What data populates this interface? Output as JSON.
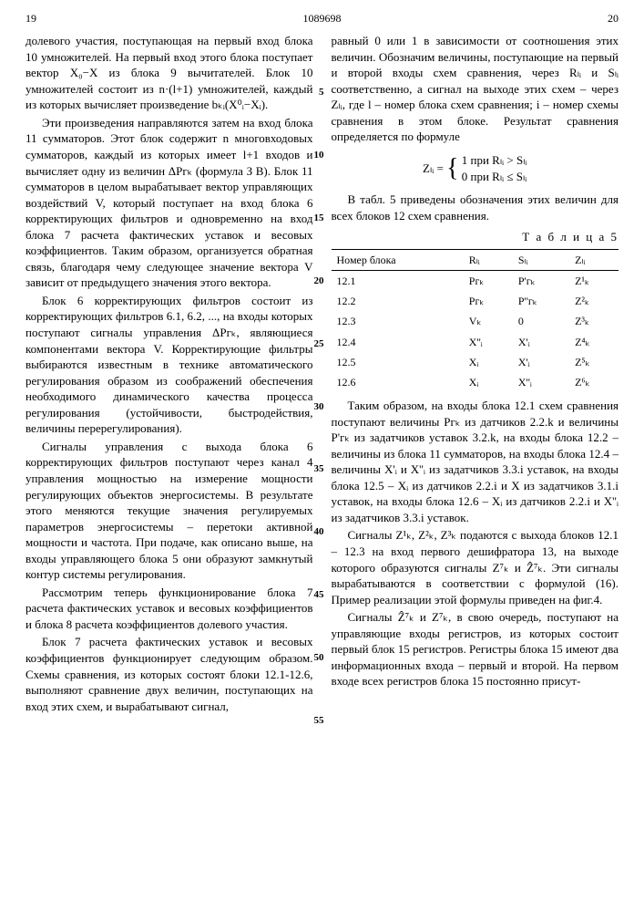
{
  "header": {
    "pg_left": "19",
    "docnum": "1089698",
    "pg_right": "20"
  },
  "linemarks": {
    "l5": "5",
    "l10": "10",
    "l15": "15",
    "l20": "20",
    "l25": "25",
    "l30": "30",
    "l35": "35",
    "l40": "40",
    "l45": "45",
    "l50": "50",
    "l55": "55"
  },
  "left": {
    "p1": "долевого участия, поступающая на первый вход блока 10 умножителей. На первый вход этого блока поступает вектор X₀−X из блока 9 вычитателей. Блок 10 умножителей состоит из n·(l+1) умножителей, каждый из которых вычисляет произведение bₖᵢ(X⁰ᵢ−Xᵢ).",
    "p2": "Эти произведения направляются затем на вход блока 11 сумматоров. Этот блок содержит n многовходовых сумматоров, каждый из которых имеет l+1 входов и вычисляет одну из величин ΔPгₖ (формула З В). Блок 11 сумматоров в целом вырабатывает вектор управляющих воздействий V, который поступает на вход блока 6 корректирующих фильтров и одновременно на вход блока 7 расчета фактических уставок и весовых коэффициентов. Таким образом, организуется обратная связь, благодаря чему следующее значение вектора V зависит от предыдущего значения этого вектора.",
    "p3": "Блок 6 корректирующих фильтров состоит из корректирующих фильтров 6.1, 6.2, ..., на входы которых поступают сигналы управления ΔPгₖ, являющиеся компонентами вектора V. Корректирующие фильтры выбираются известным в технике автоматического регулирования образом из соображений обеспечения необходимого динамического качества процесса регулирования (устойчивости, быстродействия, величины перерегулирования).",
    "p4": "Сигналы управления с выхода блока 6 корректирующих фильтров поступают через канал 4 управления мощностью на измерение мощности регулирующих объектов энергосистемы. В результате этого меняются текущие значения регулируемых параметров энергосистемы – перетоки активной мощности и частота. При подаче, как описано выше, на входы управляющего блока 5 они образуют замкнутый контур системы регулирования.",
    "p5": "Рассмотрим теперь функционирование блока 7 расчета фактических уставок и весовых коэффициентов и блока 8 расчета коэффициентов долевого участия.",
    "p6": "Блок 7 расчета фактических уставок и весовых коэффициентов функционирует следующим образом. Схемы сравнения, из которых состоят блоки 12.1-12.6, выполняют сравнение двух величин, поступающих на вход этих схем, и вырабатывают сигнал,"
  },
  "right": {
    "p1": "равный 0 или 1 в зависимости от соотношения этих величин. Обозначим величины, поступающие на первый и второй входы схем сравнения, через Rₗᵢ и Sₗᵢ соответственно, а сигнал на выходе этих схем – через Zₗᵢ, где l – номер блока схем сравнения; i – номер схемы сравнения в этом блоке. Результат сравнения определяется по формуле",
    "formula_lhs": "Zₗᵢ =",
    "formula_line1": "1  при  Rₗᵢ > Sₗᵢ",
    "formula_line2": "0  при  Rₗᵢ ≤ Sₗᵢ",
    "p2": "В табл. 5 приведены обозначения этих величин для всех блоков 12 схем сравнения.",
    "table_title": "Т а б л и ц а  5",
    "table": {
      "headers": [
        "Номер блока",
        "Rₗᵢ",
        "Sₗᵢ",
        "Zₗᵢ"
      ],
      "rows": [
        [
          "12.1",
          "Pгₖ",
          "P'гₖ",
          "Z¹ₖ"
        ],
        [
          "12.2",
          "Pгₖ",
          "P''гₖ",
          "Z²ₖ"
        ],
        [
          "12.3",
          "Vₖ",
          "0",
          "Z³ₖ"
        ],
        [
          "12.4",
          "X''ᵢ",
          "X'ᵢ",
          "Z⁴ₖ"
        ],
        [
          "12.5",
          "Xᵢ",
          "X'ᵢ",
          "Z⁵ₖ"
        ],
        [
          "12.6",
          "Xᵢ",
          "X''ᵢ",
          "Z⁶ₖ"
        ]
      ]
    },
    "p3": "Таким образом, на входы блока 12.1 схем сравнения поступают величины Pгₖ из датчиков 2.2.k и величины P'гₖ из задатчиков уставок 3.2.k, на входы блока 12.2 – величины из блока 11 сумматоров, на входы блока 12.4 – величины X'ᵢ и X''ᵢ из задатчиков 3.3.i уставок, на входы блока 12.5 – Xᵢ из датчиков 2.2.i и X из задатчиков 3.1.i уставок, на входы блока 12.6 – Xᵢ из датчиков 2.2.i и X''ᵢ из задатчиков 3.3.i уставок.",
    "p4": "Сигналы Z¹ₖ, Z²ₖ, Z³ₖ подаются с выхода блоков 12.1 – 12.3 на вход первого дешифратора 13, на выходе которого образуются сигналы Z⁷ₖ и Ẑ⁷ₖ. Эти сигналы вырабатываются в соответствии с формулой (16). Пример реализации этой формулы приведен на фиг.4.",
    "p5": "Сигналы Ẑ⁷ₖ и Z⁷ₖ, в свою очередь, поступают на управляющие входы регистров, из которых состоит первый блок 15 регистров. Регистры блока 15 имеют два информационных входа – первый и второй. На первом входе всех регистров блока 15 постоянно присут-"
  }
}
